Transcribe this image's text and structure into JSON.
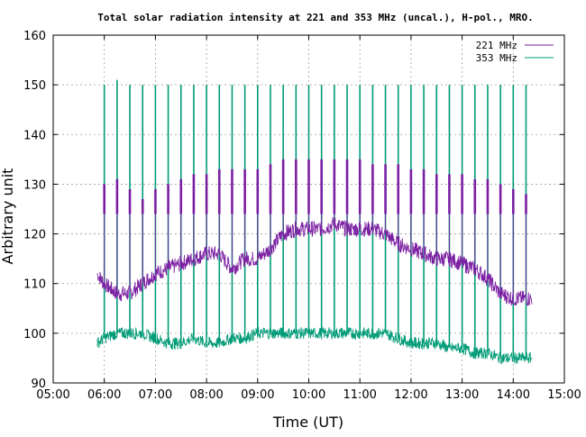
{
  "chart_data": {
    "type": "line",
    "title": "Total solar radiation intensity at 221 and 353 MHz (uncal.), H-pol., MRO.",
    "xlabel": "Time (UT)",
    "ylabel": "Arbitrary unit",
    "xlim": [
      "05:00",
      "15:00"
    ],
    "ylim": [
      90,
      160
    ],
    "x_ticks": [
      "05:00",
      "06:00",
      "07:00",
      "08:00",
      "09:00",
      "10:00",
      "11:00",
      "12:00",
      "13:00",
      "14:00",
      "15:00"
    ],
    "y_ticks": [
      90,
      100,
      110,
      120,
      130,
      140,
      150,
      160
    ],
    "grid": true,
    "legend_position": "top-right",
    "calibration_spike_times": [
      "06:00",
      "06:15",
      "06:30",
      "06:45",
      "07:00",
      "07:15",
      "07:30",
      "07:45",
      "08:00",
      "08:15",
      "08:30",
      "08:45",
      "09:00",
      "09:15",
      "09:30",
      "09:45",
      "10:00",
      "10:15",
      "10:30",
      "10:45",
      "11:00",
      "11:15",
      "11:30",
      "11:45",
      "12:00",
      "12:15",
      "12:30",
      "12:45",
      "13:00",
      "13:15",
      "13:30",
      "13:45",
      "14:00",
      "14:15"
    ],
    "series": [
      {
        "name": "221 MHz",
        "color": "#7b1fa2",
        "x": [
          "05:52",
          "06:00",
          "06:15",
          "06:30",
          "06:45",
          "07:00",
          "07:15",
          "07:30",
          "07:45",
          "08:00",
          "08:15",
          "08:30",
          "08:45",
          "09:00",
          "09:15",
          "09:30",
          "09:45",
          "10:00",
          "10:15",
          "10:30",
          "10:45",
          "11:00",
          "11:15",
          "11:30",
          "11:45",
          "12:00",
          "12:15",
          "12:30",
          "12:45",
          "13:00",
          "13:15",
          "13:30",
          "13:45",
          "14:00",
          "14:15",
          "14:22"
        ],
        "values": [
          112,
          110,
          108,
          108,
          110,
          112,
          113,
          114,
          115,
          116,
          116,
          113,
          115,
          115,
          117,
          120,
          121,
          121,
          121,
          122,
          121,
          121,
          121,
          120,
          118,
          117,
          116,
          115,
          115,
          114,
          113,
          111,
          108,
          107,
          107,
          107
        ],
        "spike_min": [
          124,
          124,
          124,
          124,
          124,
          124,
          124,
          124,
          124,
          124,
          124,
          124,
          124,
          124,
          124,
          124,
          124,
          124,
          124,
          124,
          124,
          124,
          124,
          124,
          124,
          124,
          124,
          124,
          124,
          124,
          124,
          124,
          124,
          124
        ],
        "spike_max": [
          130,
          131,
          129,
          127,
          129,
          130,
          131,
          132,
          132,
          133,
          133,
          133,
          133,
          134,
          135,
          135,
          135,
          135,
          135,
          135,
          135,
          134,
          134,
          134,
          133,
          133,
          132,
          132,
          132,
          131,
          131,
          130,
          129,
          128
        ]
      },
      {
        "name": "353 MHz",
        "color": "#009b77",
        "x": [
          "05:52",
          "06:00",
          "06:15",
          "06:30",
          "06:45",
          "07:00",
          "07:15",
          "07:30",
          "07:45",
          "08:00",
          "08:15",
          "08:30",
          "08:45",
          "09:00",
          "09:15",
          "09:30",
          "09:45",
          "10:00",
          "10:15",
          "10:30",
          "10:45",
          "11:00",
          "11:15",
          "11:30",
          "11:45",
          "12:00",
          "12:15",
          "12:30",
          "12:45",
          "13:00",
          "13:15",
          "13:30",
          "13:45",
          "14:00",
          "14:15",
          "14:22"
        ],
        "values": [
          98,
          99,
          100,
          100,
          100,
          99,
          98,
          98,
          99,
          98,
          98,
          99,
          99,
          100,
          100,
          100,
          100,
          100,
          100,
          100,
          100,
          100,
          100,
          100,
          99,
          98,
          98,
          98,
          97,
          97,
          96,
          96,
          95,
          95,
          95,
          95
        ],
        "spike_max": [
          150,
          151,
          150,
          150,
          150,
          150,
          150,
          150,
          150,
          150,
          150,
          150,
          150,
          150,
          150,
          150,
          150,
          150,
          150,
          150,
          150,
          150,
          150,
          150,
          150,
          150,
          150,
          150,
          150,
          150,
          150,
          150,
          150,
          150
        ]
      }
    ]
  }
}
